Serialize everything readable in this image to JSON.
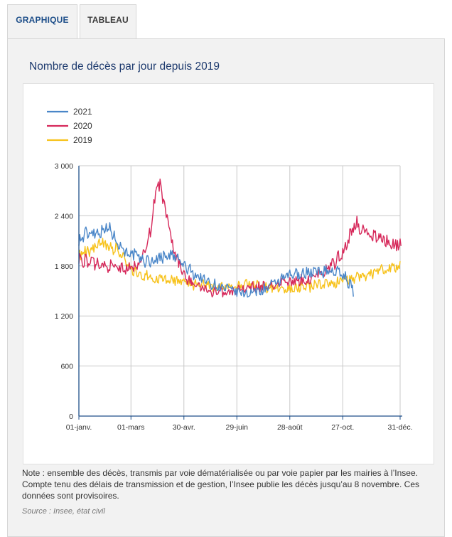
{
  "tabs": [
    {
      "label": "GRAPHIQUE",
      "active": true
    },
    {
      "label": "TABLEAU",
      "active": false
    }
  ],
  "panel": {
    "title": "Nombre de décès par jour depuis 2019",
    "note": "Note : ensemble des décès, transmis par voie dématérialisée ou par voie papier par les mairies à l’Insee. Compte tenu des délais de transmission et de gestion, l’Insee publie les décès jusqu’au 8 novembre. Ces données sont provisoires.",
    "source": "Source : Insee, état civil"
  },
  "colors": {
    "y2021": "#4a86c8",
    "y2020": "#d6285a",
    "y2019": "#f7c21b",
    "accent": "#1d4e89"
  },
  "chart_data": {
    "type": "line",
    "title": "Nombre de décès par jour depuis 2019",
    "xlabel": "",
    "ylabel": "",
    "x_unit": "day of year",
    "xlim": [
      1,
      365
    ],
    "ylim": [
      0,
      3000
    ],
    "yticks": [
      0,
      600,
      1200,
      1800,
      2400,
      3000
    ],
    "ytick_labels": [
      "0",
      "600",
      "1 200",
      "1 800",
      "2 400",
      "3 000"
    ],
    "xticks": [
      1,
      60,
      120,
      180,
      240,
      300,
      365
    ],
    "xtick_labels": [
      "01-janv.",
      "01-mars",
      "30-avr.",
      "29-juin",
      "28-août",
      "27-oct.",
      "31-déc."
    ],
    "grid": true,
    "legend_position": "top-left",
    "series": [
      {
        "name": "2021",
        "color": "#4a86c8",
        "x": [
          1,
          8,
          15,
          22,
          29,
          36,
          43,
          50,
          57,
          64,
          71,
          78,
          85,
          92,
          99,
          106,
          113,
          120,
          127,
          134,
          141,
          148,
          155,
          162,
          169,
          176,
          183,
          190,
          197,
          204,
          211,
          218,
          225,
          232,
          239,
          246,
          253,
          260,
          267,
          274,
          281,
          288,
          295,
          302,
          309,
          312
        ],
        "values": [
          2100,
          2170,
          2220,
          2200,
          2250,
          2240,
          2130,
          2020,
          1960,
          1920,
          1880,
          1850,
          1860,
          1900,
          1930,
          1920,
          1880,
          1800,
          1740,
          1690,
          1650,
          1600,
          1570,
          1540,
          1520,
          1500,
          1480,
          1470,
          1480,
          1500,
          1520,
          1560,
          1600,
          1640,
          1680,
          1700,
          1710,
          1720,
          1730,
          1730,
          1740,
          1740,
          1720,
          1680,
          1560,
          1500
        ]
      },
      {
        "name": "2020",
        "color": "#d6285a",
        "x": [
          1,
          8,
          15,
          22,
          29,
          36,
          43,
          50,
          57,
          64,
          71,
          78,
          82,
          86,
          90,
          94,
          98,
          103,
          108,
          113,
          120,
          127,
          134,
          141,
          148,
          155,
          162,
          169,
          176,
          183,
          190,
          197,
          204,
          211,
          218,
          225,
          232,
          239,
          246,
          253,
          260,
          267,
          274,
          281,
          288,
          295,
          302,
          306,
          310,
          315,
          320,
          327,
          334,
          341,
          348,
          355,
          362,
          366
        ],
        "values": [
          1880,
          1860,
          1840,
          1820,
          1800,
          1790,
          1780,
          1770,
          1760,
          1790,
          1880,
          2020,
          2250,
          2550,
          2730,
          2720,
          2520,
          2250,
          2010,
          1850,
          1700,
          1620,
          1570,
          1540,
          1510,
          1490,
          1480,
          1480,
          1490,
          1520,
          1530,
          1540,
          1540,
          1550,
          1560,
          1580,
          1600,
          1600,
          1610,
          1620,
          1630,
          1680,
          1700,
          1750,
          1800,
          1900,
          2010,
          2120,
          2230,
          2290,
          2270,
          2220,
          2170,
          2130,
          2090,
          2060,
          2060,
          2030
        ]
      },
      {
        "name": "2019",
        "color": "#f7c21b",
        "x": [
          1,
          8,
          15,
          22,
          29,
          36,
          43,
          50,
          57,
          64,
          71,
          78,
          85,
          92,
          99,
          106,
          113,
          120,
          127,
          134,
          141,
          148,
          155,
          162,
          169,
          176,
          183,
          190,
          197,
          204,
          211,
          218,
          225,
          232,
          239,
          246,
          253,
          260,
          267,
          274,
          281,
          288,
          295,
          302,
          309,
          316,
          323,
          330,
          337,
          344,
          351,
          358,
          365
        ],
        "values": [
          1900,
          1950,
          2000,
          2040,
          2060,
          2050,
          2000,
          1900,
          1800,
          1720,
          1690,
          1670,
          1650,
          1640,
          1630,
          1620,
          1610,
          1600,
          1590,
          1580,
          1570,
          1560,
          1550,
          1540,
          1540,
          1550,
          1560,
          1570,
          1580,
          1560,
          1550,
          1540,
          1530,
          1520,
          1520,
          1530,
          1540,
          1550,
          1560,
          1570,
          1580,
          1590,
          1610,
          1630,
          1650,
          1670,
          1690,
          1710,
          1730,
          1750,
          1770,
          1780,
          1790
        ]
      }
    ]
  }
}
